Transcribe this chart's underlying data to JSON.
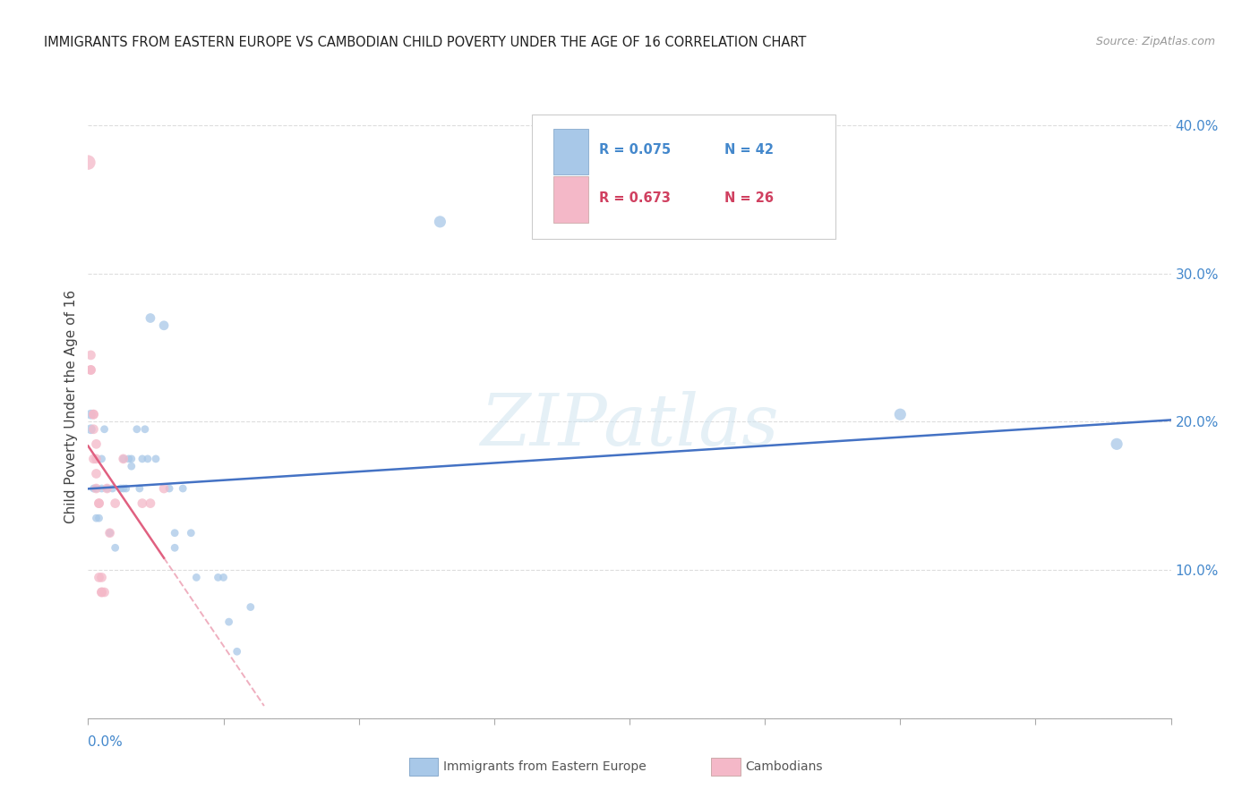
{
  "title": "IMMIGRANTS FROM EASTERN EUROPE VS CAMBODIAN CHILD POVERTY UNDER THE AGE OF 16 CORRELATION CHART",
  "source": "Source: ZipAtlas.com",
  "ylabel": "Child Poverty Under the Age of 16",
  "ylabel_right_ticks": [
    "10.0%",
    "20.0%",
    "30.0%",
    "40.0%"
  ],
  "ylabel_right_vals": [
    0.1,
    0.2,
    0.3,
    0.4
  ],
  "legend_label1": "Immigrants from Eastern Europe",
  "legend_label2": "Cambodians",
  "blue_color": "#a8c8e8",
  "blue_line_color": "#4472c4",
  "pink_color": "#f4b8c8",
  "pink_line_color": "#e06080",
  "background_color": "#ffffff",
  "watermark": "ZIPatlas",
  "blue_R": 0.075,
  "blue_N": 42,
  "pink_R": 0.673,
  "pink_N": 26,
  "blue_points": [
    [
      0.001,
      0.205
    ],
    [
      0.001,
      0.195
    ],
    [
      0.002,
      0.155
    ],
    [
      0.003,
      0.155
    ],
    [
      0.003,
      0.135
    ],
    [
      0.004,
      0.135
    ],
    [
      0.005,
      0.175
    ],
    [
      0.005,
      0.155
    ],
    [
      0.006,
      0.195
    ],
    [
      0.007,
      0.155
    ],
    [
      0.008,
      0.125
    ],
    [
      0.009,
      0.155
    ],
    [
      0.01,
      0.115
    ],
    [
      0.012,
      0.155
    ],
    [
      0.013,
      0.175
    ],
    [
      0.013,
      0.155
    ],
    [
      0.014,
      0.155
    ],
    [
      0.015,
      0.175
    ],
    [
      0.016,
      0.175
    ],
    [
      0.016,
      0.17
    ],
    [
      0.018,
      0.195
    ],
    [
      0.019,
      0.155
    ],
    [
      0.02,
      0.175
    ],
    [
      0.021,
      0.195
    ],
    [
      0.022,
      0.175
    ],
    [
      0.023,
      0.27
    ],
    [
      0.025,
      0.175
    ],
    [
      0.028,
      0.265
    ],
    [
      0.03,
      0.155
    ],
    [
      0.032,
      0.115
    ],
    [
      0.032,
      0.125
    ],
    [
      0.035,
      0.155
    ],
    [
      0.038,
      0.125
    ],
    [
      0.04,
      0.095
    ],
    [
      0.048,
      0.095
    ],
    [
      0.05,
      0.095
    ],
    [
      0.052,
      0.065
    ],
    [
      0.055,
      0.045
    ],
    [
      0.06,
      0.075
    ],
    [
      0.13,
      0.335
    ],
    [
      0.3,
      0.205
    ],
    [
      0.38,
      0.185
    ]
  ],
  "pink_points": [
    [
      0.0,
      0.375
    ],
    [
      0.001,
      0.245
    ],
    [
      0.001,
      0.235
    ],
    [
      0.001,
      0.235
    ],
    [
      0.002,
      0.205
    ],
    [
      0.002,
      0.205
    ],
    [
      0.002,
      0.195
    ],
    [
      0.002,
      0.175
    ],
    [
      0.003,
      0.185
    ],
    [
      0.003,
      0.175
    ],
    [
      0.003,
      0.165
    ],
    [
      0.003,
      0.155
    ],
    [
      0.004,
      0.145
    ],
    [
      0.004,
      0.145
    ],
    [
      0.004,
      0.095
    ],
    [
      0.005,
      0.095
    ],
    [
      0.005,
      0.085
    ],
    [
      0.005,
      0.085
    ],
    [
      0.006,
      0.085
    ],
    [
      0.007,
      0.155
    ],
    [
      0.008,
      0.125
    ],
    [
      0.01,
      0.145
    ],
    [
      0.013,
      0.175
    ],
    [
      0.02,
      0.145
    ],
    [
      0.023,
      0.145
    ],
    [
      0.028,
      0.155
    ]
  ],
  "blue_sizes": [
    60,
    60,
    40,
    40,
    40,
    40,
    40,
    40,
    40,
    40,
    40,
    40,
    40,
    40,
    40,
    40,
    40,
    40,
    40,
    40,
    40,
    40,
    40,
    40,
    40,
    60,
    40,
    60,
    40,
    40,
    40,
    40,
    40,
    40,
    40,
    40,
    40,
    40,
    40,
    90,
    90,
    90
  ],
  "pink_sizes": [
    140,
    60,
    60,
    60,
    60,
    60,
    60,
    60,
    60,
    60,
    60,
    60,
    60,
    60,
    60,
    60,
    60,
    60,
    60,
    60,
    60,
    60,
    60,
    60,
    60,
    60
  ]
}
